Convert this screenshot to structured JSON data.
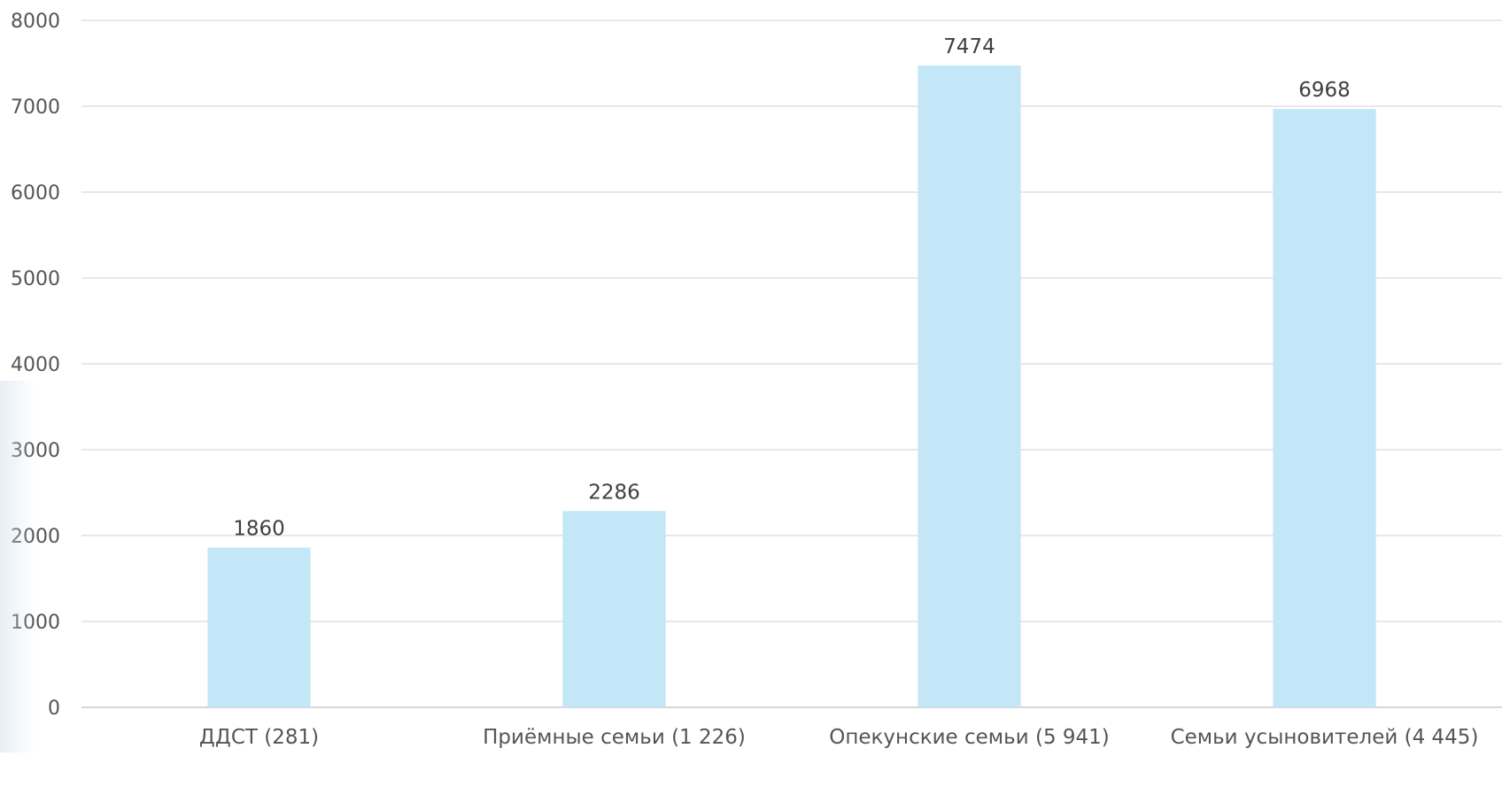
{
  "chart_data": {
    "type": "bar",
    "categories": [
      "ДДСТ (281)",
      "Приёмные семьи (1 226)",
      "Опекунские семьи (5 941)",
      "Семьи усыновителей (4 445)"
    ],
    "values": [
      1860,
      2286,
      7474,
      6968
    ],
    "data_labels": [
      "1860",
      "2286",
      "7474",
      "6968"
    ],
    "ylim": [
      0,
      8000
    ],
    "yticks": [
      0,
      1000,
      2000,
      3000,
      4000,
      5000,
      6000,
      7000,
      8000
    ],
    "grid": true,
    "legend": "none",
    "colors": {
      "bar": "#c4e7f7",
      "grid": "#d9d9d9",
      "axis": "#bfbfbf"
    }
  }
}
